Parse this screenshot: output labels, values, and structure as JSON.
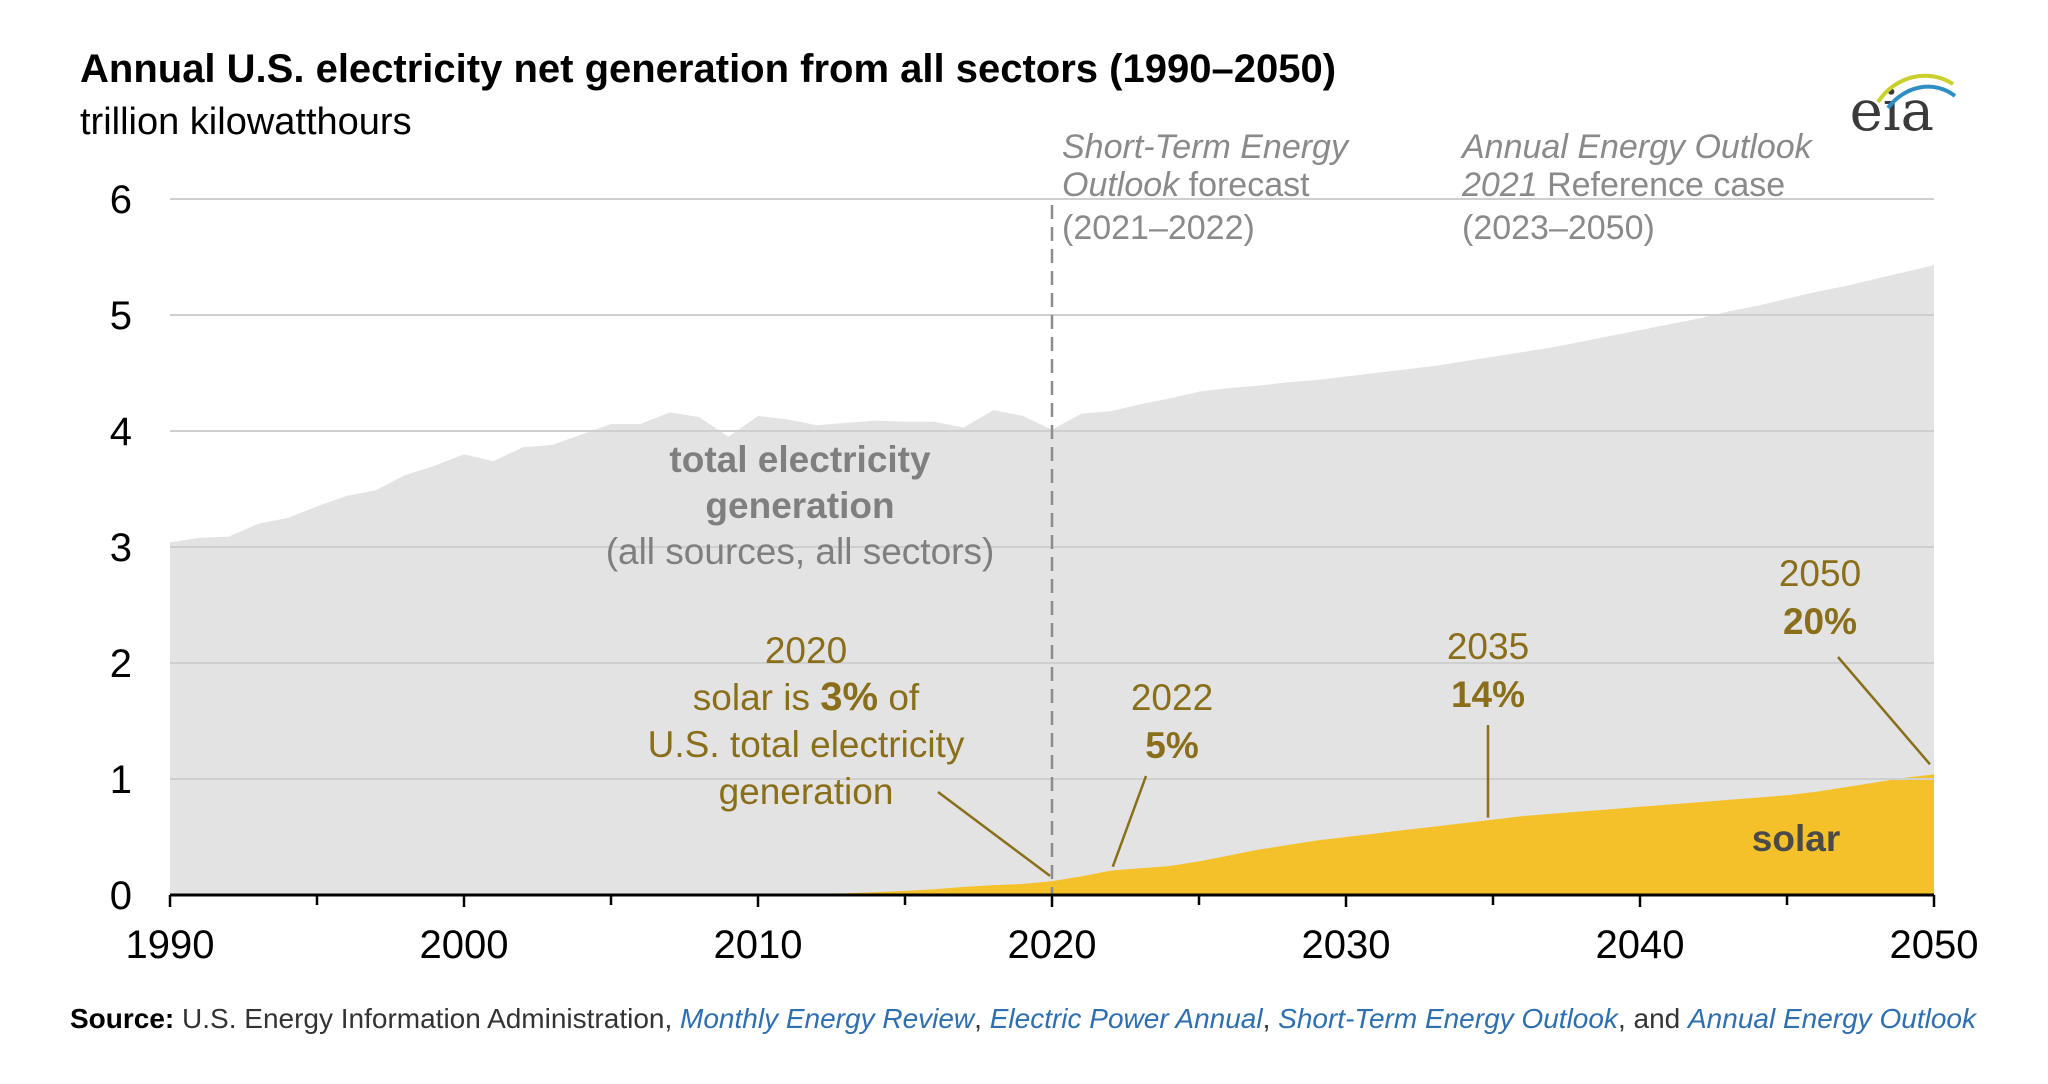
{
  "chart_data": {
    "type": "area",
    "title": "Annual U.S. electricity net generation from all sectors (1990–2050)",
    "subtitle": "trillion kilowatthours",
    "xlim": [
      1990,
      2050
    ],
    "ylim": [
      0,
      6
    ],
    "xticks": [
      1990,
      2000,
      2010,
      2020,
      2030,
      2040,
      2050
    ],
    "yticks": [
      0,
      1,
      2,
      3,
      4,
      5,
      6
    ],
    "grid": true,
    "series": [
      {
        "name": "total electricity generation",
        "color": "#e3e3e3",
        "x": [
          1990,
          1991,
          1992,
          1993,
          1994,
          1995,
          1996,
          1997,
          1998,
          1999,
          2000,
          2001,
          2002,
          2003,
          2004,
          2005,
          2006,
          2007,
          2008,
          2009,
          2010,
          2011,
          2012,
          2013,
          2014,
          2015,
          2016,
          2017,
          2018,
          2019,
          2020,
          2021,
          2022,
          2023,
          2024,
          2025,
          2026,
          2027,
          2028,
          2029,
          2030,
          2031,
          2032,
          2033,
          2034,
          2035,
          2036,
          2037,
          2038,
          2039,
          2040,
          2041,
          2042,
          2043,
          2044,
          2045,
          2046,
          2047,
          2048,
          2049,
          2050
        ],
        "values": [
          3.04,
          3.08,
          3.09,
          3.2,
          3.25,
          3.35,
          3.44,
          3.49,
          3.62,
          3.7,
          3.8,
          3.74,
          3.86,
          3.88,
          3.97,
          4.06,
          4.06,
          4.16,
          4.12,
          3.95,
          4.13,
          4.1,
          4.05,
          4.07,
          4.09,
          4.08,
          4.08,
          4.03,
          4.18,
          4.13,
          4.01,
          4.15,
          4.17,
          4.23,
          4.28,
          4.34,
          4.37,
          4.39,
          4.42,
          4.44,
          4.47,
          4.5,
          4.53,
          4.56,
          4.6,
          4.64,
          4.68,
          4.72,
          4.77,
          4.82,
          4.87,
          4.92,
          4.97,
          5.03,
          5.08,
          5.14,
          5.2,
          5.25,
          5.31,
          5.37,
          5.43
        ]
      },
      {
        "name": "solar",
        "color": "#f4c12a",
        "x": [
          1990,
          1991,
          1992,
          1993,
          1994,
          1995,
          1996,
          1997,
          1998,
          1999,
          2000,
          2001,
          2002,
          2003,
          2004,
          2005,
          2006,
          2007,
          2008,
          2009,
          2010,
          2011,
          2012,
          2013,
          2014,
          2015,
          2016,
          2017,
          2018,
          2019,
          2020,
          2021,
          2022,
          2023,
          2024,
          2025,
          2026,
          2027,
          2028,
          2029,
          2030,
          2031,
          2032,
          2033,
          2034,
          2035,
          2036,
          2037,
          2038,
          2039,
          2040,
          2041,
          2042,
          2043,
          2044,
          2045,
          2046,
          2047,
          2048,
          2049,
          2050
        ],
        "values": [
          0,
          0,
          0,
          0,
          0,
          0,
          0,
          0,
          0,
          0,
          0,
          0,
          0,
          0,
          0,
          0,
          0,
          0,
          0,
          0,
          0.005,
          0.006,
          0.01,
          0.015,
          0.025,
          0.035,
          0.05,
          0.07,
          0.085,
          0.095,
          0.12,
          0.16,
          0.21,
          0.23,
          0.25,
          0.29,
          0.34,
          0.39,
          0.43,
          0.47,
          0.5,
          0.53,
          0.56,
          0.59,
          0.62,
          0.65,
          0.68,
          0.7,
          0.72,
          0.74,
          0.76,
          0.78,
          0.8,
          0.82,
          0.84,
          0.86,
          0.89,
          0.93,
          0.97,
          1.01,
          1.04
        ]
      }
    ],
    "forecast_marker_x": 2020,
    "phases": [
      {
        "line1": "Short-Term Energy",
        "line2_italic": "Outlook",
        "line2_rest": " forecast",
        "line3": "(2021–2022)"
      },
      {
        "line1": "Annual Energy Outlook",
        "line2_italic": "2021",
        "line2_rest": " Reference case",
        "line3": "(2023–2050)"
      }
    ],
    "total_label": [
      "total electricity",
      "generation",
      "(all sources, all sectors)"
    ],
    "solar_label": "solar",
    "annotations": [
      {
        "year": 2020,
        "lines": [
          "2020",
          "solar is ",
          "3%",
          " of",
          "U.S. total electricity",
          "generation"
        ]
      },
      {
        "year": 2022,
        "line1": "2022",
        "line2": "5%"
      },
      {
        "year": 2035,
        "line1": "2035",
        "line2": "14%"
      },
      {
        "year": 2050,
        "line1": "2050",
        "line2": "20%"
      }
    ]
  },
  "logo": {
    "text": "eia"
  },
  "source": {
    "label": "Source:",
    "text1": " U.S. Energy Information Administration, ",
    "ref1": "Monthly Energy Review",
    "sep1": ", ",
    "ref2": "Electric Power Annual",
    "sep2": ", ",
    "ref3": "Short-Term Energy Outlook",
    "sep3": ", and ",
    "ref4": "Annual Energy Outlook"
  }
}
